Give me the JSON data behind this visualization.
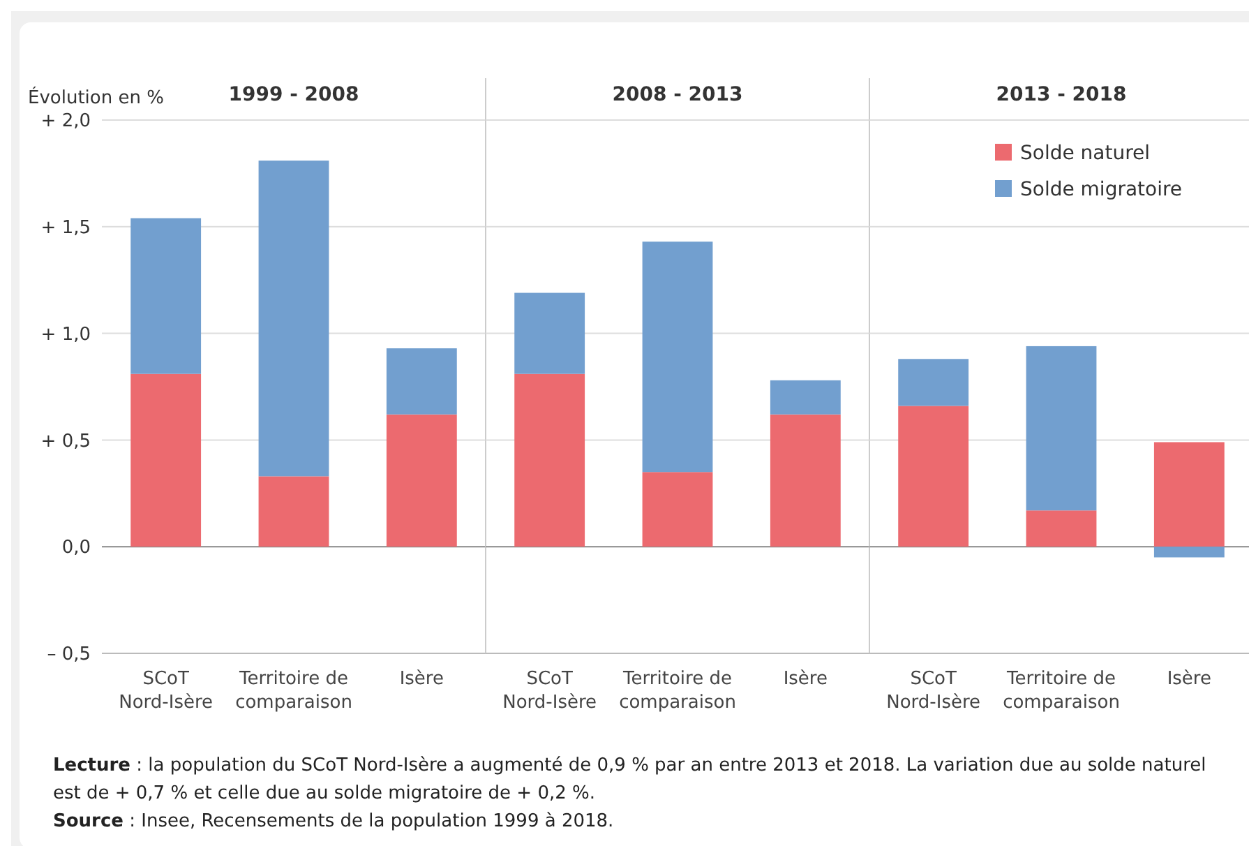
{
  "chart_data": [
    {
      "type": "bar",
      "title": "1999 - 2008",
      "ylabel": "Évolution en %",
      "stacked": true,
      "grid": "y",
      "categories": [
        "SCoT\nNord-Isère",
        "Territoire de\ncomparaison",
        "Isère"
      ],
      "ylim": [
        -0.5,
        2.0
      ],
      "yticks": [
        {
          "value": -0.5,
          "label": "– 0,5"
        },
        {
          "value": 0,
          "label": "0,0"
        },
        {
          "value": 0.5,
          "label": "+ 0,5"
        },
        {
          "value": 1,
          "label": "+ 1,0"
        },
        {
          "value": 1.5,
          "label": "+ 1,5"
        },
        {
          "value": 2,
          "label": "+ 2,0"
        }
      ],
      "series": [
        {
          "color": "#ec6a6f",
          "values": [
            0.81,
            0.33,
            0.62
          ]
        },
        {
          "color": "#729fcf",
          "values": [
            0.73,
            1.48,
            0.31
          ]
        }
      ],
      "annotations": [
        "Lecture : la population du SCoT Nord-Isère a augmenté de 0,9 % par an entre 2013 et 2018. La variation due au solde naturel est de + 0,7 % et celle due au solde migratoire de + 0,2 %.",
        "Source : Insee, Recensements de la population 1999 à 2018."
      ]
    },
    {
      "type": "bar",
      "title": "2008 - 2013",
      "stacked": true,
      "grid": "y",
      "tick_labels": "x",
      "categories": [
        "SCoT\nNord-Isère",
        "Territoire de\ncomparaison",
        "Isère"
      ],
      "ylim": [
        -0.5,
        2.0
      ],
      "yticks": [
        -0.5,
        0,
        0.5,
        1,
        1.5,
        2
      ],
      "series": [
        {
          "color": "#ec6a6f",
          "values": [
            0.81,
            0.35,
            0.62
          ]
        },
        {
          "color": "#729fcf",
          "values": [
            0.38,
            1.08,
            0.16
          ]
        }
      ]
    },
    {
      "type": "bar",
      "title": "2013 - 2018",
      "stacked": true,
      "grid": "y",
      "tick_labels": "x",
      "legend": "top right",
      "categories": [
        "SCoT\nNord-Isère",
        "Territoire de\ncomparaison",
        "Isère"
      ],
      "ylim": [
        -0.5,
        2.0
      ],
      "yticks": [
        -0.5,
        0,
        0.5,
        1,
        1.5,
        2
      ],
      "series": [
        {
          "name": "Solde naturel",
          "color": "#ec6a6f",
          "values": [
            0.66,
            0.17,
            0.49
          ]
        },
        {
          "name": "Solde migratoire",
          "color": "#729fcf",
          "values": [
            0.22,
            0.77,
            -0.05
          ]
        }
      ]
    }
  ]
}
